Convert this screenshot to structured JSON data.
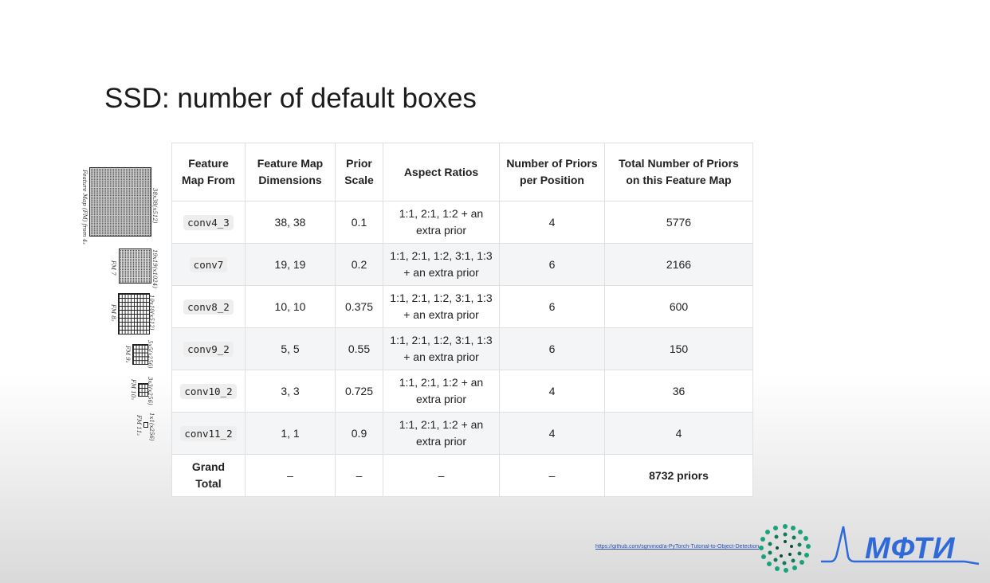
{
  "slide": {
    "title": "SSD: number of default boxes",
    "source_link": "https://github.com/sgrvinod/a-PyTorch-Tutorial-to-Object-Detection",
    "logo_text": "МФТИ"
  },
  "table": {
    "headers": [
      "Feature Map From",
      "Feature Map Dimensions",
      "Prior Scale",
      "Aspect Ratios",
      "Number of Priors per Position",
      "Total Number of Priors on this Feature Map"
    ],
    "rows": [
      {
        "layer": "conv4_3",
        "dims": "38, 38",
        "scale": "0.1",
        "ratios": "1:1, 2:1, 1:2 + an extra prior",
        "per_pos": "4",
        "total": "5776"
      },
      {
        "layer": "conv7",
        "dims": "19, 19",
        "scale": "0.2",
        "ratios": "1:1, 2:1, 1:2, 3:1, 1:3 + an extra prior",
        "per_pos": "6",
        "total": "2166"
      },
      {
        "layer": "conv8_2",
        "dims": "10, 10",
        "scale": "0.375",
        "ratios": "1:1, 2:1, 1:2, 3:1, 1:3 + an extra prior",
        "per_pos": "6",
        "total": "600"
      },
      {
        "layer": "conv9_2",
        "dims": "5, 5",
        "scale": "0.55",
        "ratios": "1:1, 2:1, 1:2, 3:1, 1:3 + an extra prior",
        "per_pos": "6",
        "total": "150"
      },
      {
        "layer": "conv10_2",
        "dims": "3, 3",
        "scale": "0.725",
        "ratios": "1:1, 2:1, 1:2 + an extra prior",
        "per_pos": "4",
        "total": "36"
      },
      {
        "layer": "conv11_2",
        "dims": "1, 1",
        "scale": "0.9",
        "ratios": "1:1, 2:1, 1:2 + an extra prior",
        "per_pos": "4",
        "total": "4"
      }
    ],
    "grand_total": {
      "label": "Grand Total",
      "dims": "–",
      "scale": "–",
      "ratios": "–",
      "per_pos": "–",
      "total": "8732 priors"
    }
  },
  "feature_maps": [
    {
      "name": "Feature Map (FM) from 4₃",
      "size": "38x38(x512)"
    },
    {
      "name": "FM 7",
      "size": "19x19(x1024)"
    },
    {
      "name": "FM 8₂",
      "size": "10x10(x512)"
    },
    {
      "name": "FM 9₂",
      "size": "5x5(x256)"
    },
    {
      "name": "FM 10₂",
      "size": "3x3(x256)"
    },
    {
      "name": "FM 11₂",
      "size": "1x1(x256)"
    }
  ]
}
